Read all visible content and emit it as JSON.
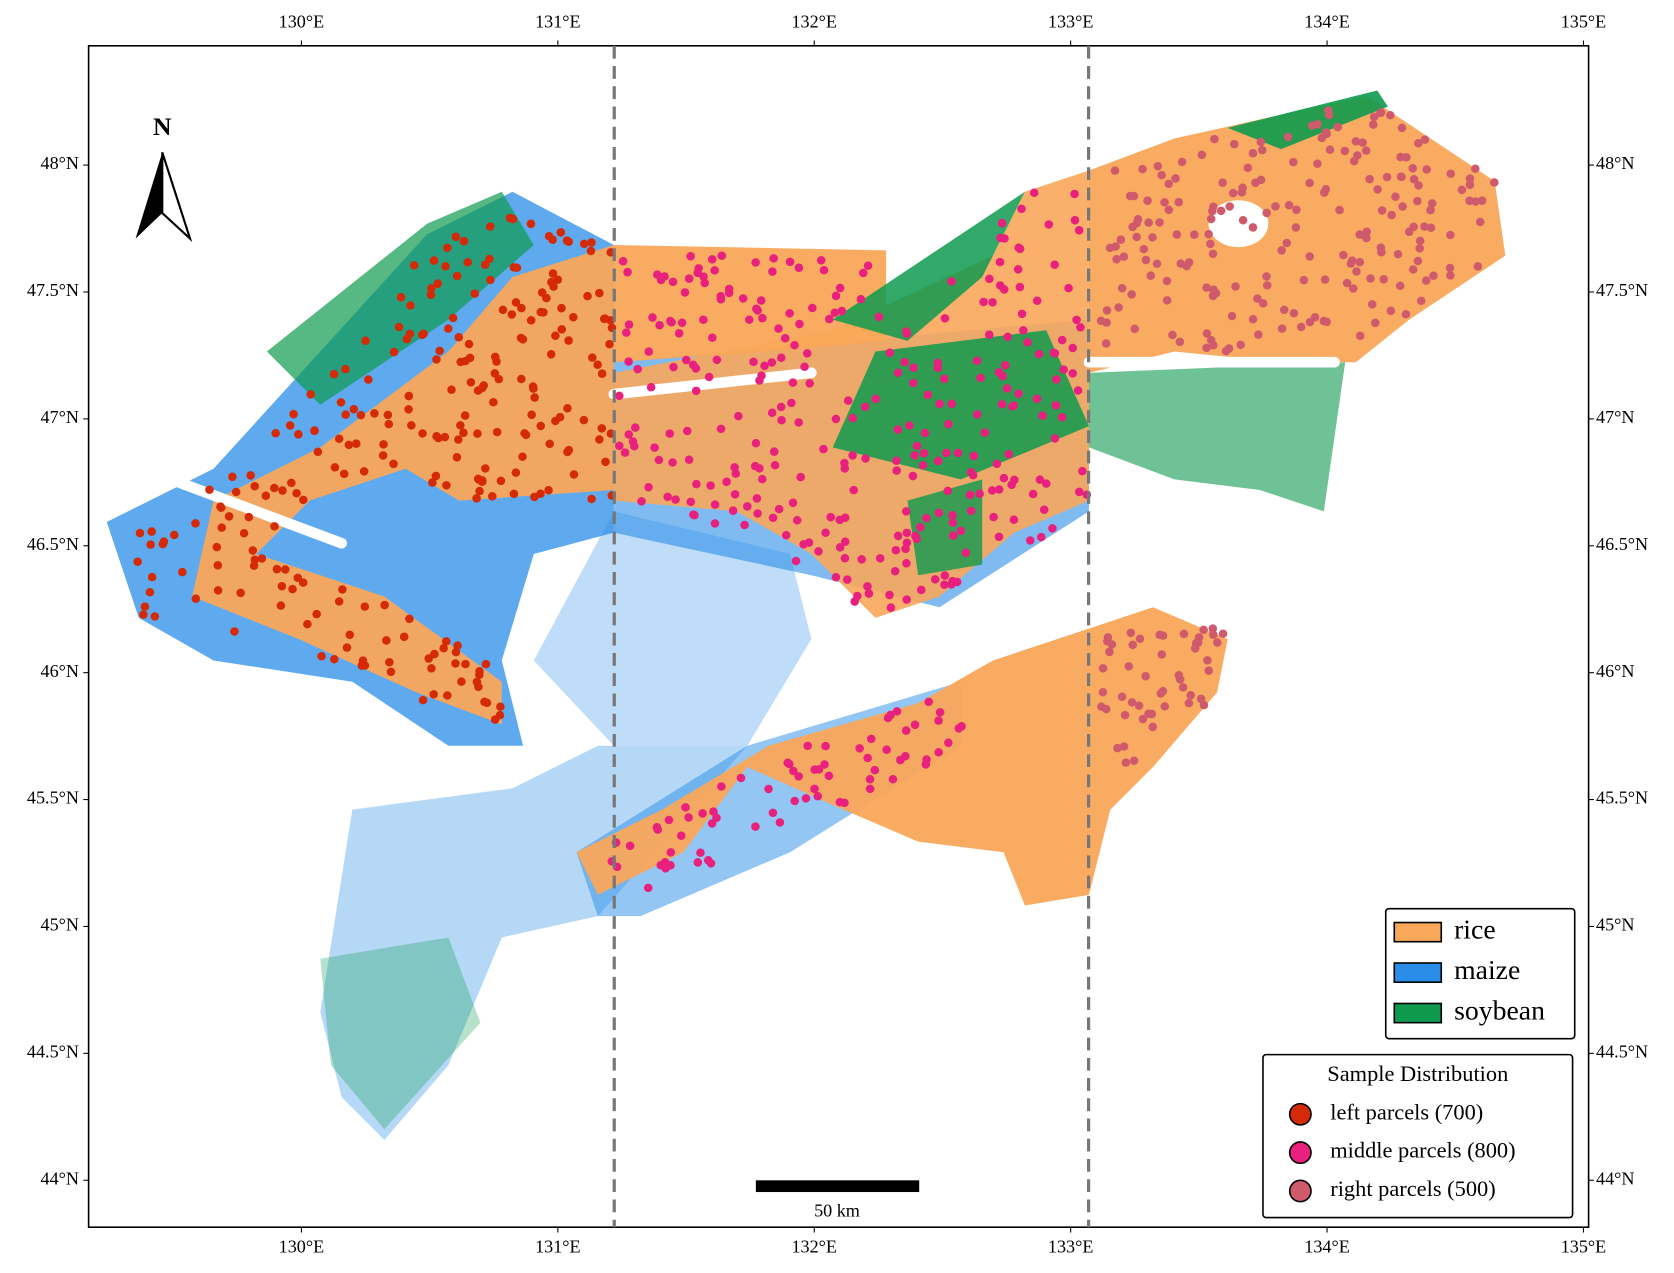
{
  "map": {
    "xlim": [
      129.17,
      135.02
    ],
    "ylim": [
      43.815,
      48.47
    ],
    "x_ticks": [
      {
        "value": 130,
        "label": "130°E"
      },
      {
        "value": 131,
        "label": "131°E"
      },
      {
        "value": 132,
        "label": "132°E"
      },
      {
        "value": 133,
        "label": "133°E"
      },
      {
        "value": 134,
        "label": "134°E"
      },
      {
        "value": 135,
        "label": "135°E"
      }
    ],
    "y_ticks": [
      {
        "value": 44,
        "label": "44°N"
      },
      {
        "value": 44.5,
        "label": "44.5°N"
      },
      {
        "value": 45,
        "label": "45°N"
      },
      {
        "value": 45.5,
        "label": "45.5°N"
      },
      {
        "value": 46,
        "label": "46°N"
      },
      {
        "value": 46.5,
        "label": "46.5°N"
      },
      {
        "value": 47,
        "label": "47°N"
      },
      {
        "value": 47.5,
        "label": "47.5°N"
      },
      {
        "value": 48,
        "label": "48°N"
      }
    ],
    "dividers": [
      131.22,
      133.07
    ],
    "north": "N",
    "scale_bar": "50 km",
    "land_cover": [
      {
        "name": "rice",
        "color": "#f9a75a"
      },
      {
        "name": "maize",
        "color": "#2a8ee8"
      },
      {
        "name": "soybean",
        "color": "#0e9a4e"
      }
    ],
    "samples": {
      "title": "Sample Distribution",
      "series": [
        {
          "name": "left parcels (700)",
          "color": "#d42a08"
        },
        {
          "name": "middle parcels (800)",
          "color": "#e8207e"
        },
        {
          "name": "right parcels (500)",
          "color": "#cf5a6c"
        }
      ]
    }
  }
}
